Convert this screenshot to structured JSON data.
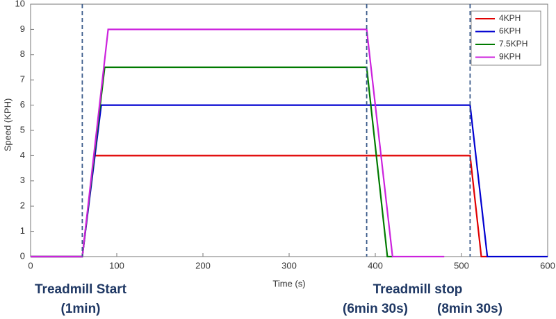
{
  "chart_data": {
    "type": "line",
    "x_label": "Time (s)",
    "y_label": "Speed (KPH)",
    "xlim": [
      0,
      600
    ],
    "xticks": [
      0,
      100,
      200,
      300,
      400,
      500,
      600
    ],
    "ylim": [
      0,
      10
    ],
    "yticks": [
      0,
      1,
      2,
      3,
      4,
      5,
      6,
      7,
      8,
      9,
      10
    ],
    "legend": "top-right",
    "series": [
      {
        "name": "4KPH",
        "color": "#e00000",
        "x": [
          0,
          60,
          74,
          510,
          523,
          530
        ],
        "values": [
          0,
          0,
          4,
          4,
          0,
          0
        ]
      },
      {
        "name": "6KPH",
        "color": "#0000d0",
        "x": [
          0,
          60,
          82,
          510,
          530,
          600
        ],
        "values": [
          0,
          0,
          6,
          6,
          0,
          0
        ]
      },
      {
        "name": "7.5KPH",
        "color": "#007a00",
        "x": [
          0,
          60,
          86,
          390,
          414,
          420
        ],
        "values": [
          0,
          0,
          7.5,
          7.5,
          0,
          0
        ]
      },
      {
        "name": "9KPH",
        "color": "#cc22dd",
        "x": [
          0,
          60,
          90,
          390,
          420,
          480
        ],
        "values": [
          0,
          0,
          9,
          9,
          0,
          0
        ]
      }
    ],
    "vlines": [
      60,
      390,
      510
    ],
    "vline_color": "#3a5a8a",
    "annotations": [
      "Treadmill Start",
      "(1min)",
      "Treadmill stop",
      "(6min 30s)",
      "(8min 30s)"
    ]
  }
}
